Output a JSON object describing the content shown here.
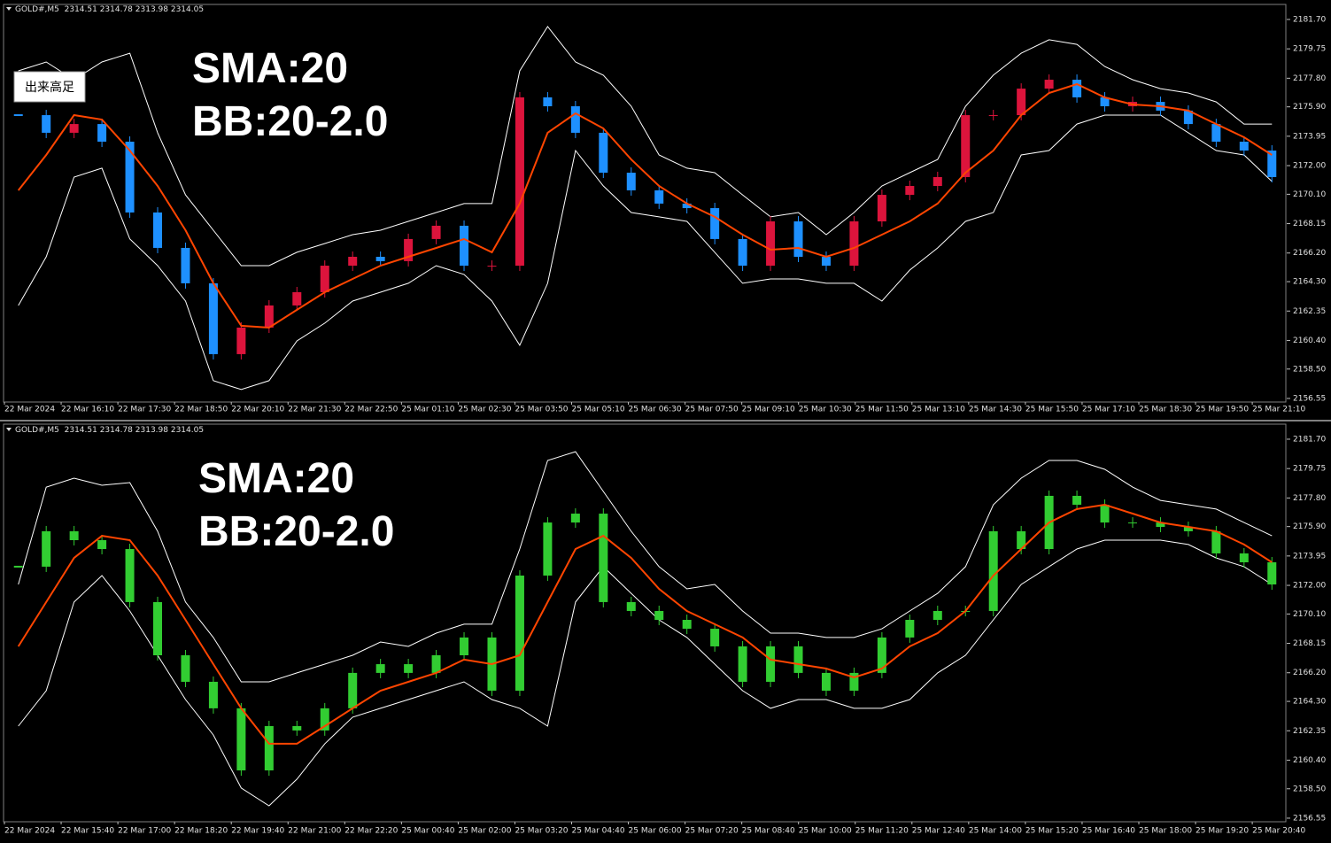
{
  "chart_data": [
    {
      "type": "candlestick",
      "header": "GOLD#,M5  2314.51 2314.78 2313.98 2314.05",
      "annotations": [
        "SMA:20",
        "BB:20-2.0"
      ],
      "button": "出来高足",
      "x_labels": [
        "22 Mar 2024",
        "22 Mar 16:10",
        "22 Mar 17:30",
        "22 Mar 18:50",
        "22 Mar 20:10",
        "22 Mar 21:30",
        "22 Mar 22:50",
        "25 Mar 01:10",
        "25 Mar 02:30",
        "25 Mar 03:50",
        "25 Mar 05:10",
        "25 Mar 06:30",
        "25 Mar 07:50",
        "25 Mar 09:10",
        "25 Mar 10:30",
        "25 Mar 11:50",
        "25 Mar 13:10",
        "25 Mar 14:30",
        "25 Mar 15:50",
        "25 Mar 17:10",
        "25 Mar 18:30",
        "25 Mar 19:50",
        "25 Mar 21:10"
      ],
      "ylim": [
        2156.43,
        2182.58
      ],
      "yticks": [
        {
          "value": 2181.7,
          "label": "2181.70"
        },
        2179.75,
        {
          "value": 2177.8,
          "label": "2177.80"
        },
        {
          "value": 2175.9,
          "label": "2175.90"
        },
        2173.95,
        {
          "value": 2172,
          "label": "2172.00"
        },
        {
          "value": 2170.1,
          "label": "2170.10"
        },
        2168.15,
        {
          "value": 2166.2,
          "label": "2166.20"
        },
        {
          "value": 2164.3,
          "label": "2164.30"
        },
        2162.35,
        {
          "value": 2160.4,
          "label": "2160.40"
        },
        {
          "value": 2158.5,
          "label": "2158.50"
        },
        2156.55
      ],
      "close": {
        "up_color": "#dc143c",
        "down_color": "#1e90ff",
        "values": [
          2175.35,
          2174.18,
          2174.76,
          2173.59,
          2168.89,
          2166.54,
          2164.19,
          2159.49,
          2161.25,
          2162.72,
          2163.6,
          2165.36,
          2165.95,
          2165.66,
          2167.13,
          2168.01,
          2165.36,
          2165.36,
          2176.53,
          2175.94,
          2174.18,
          2171.53,
          2170.36,
          2169.48,
          2169.18,
          2167.13,
          2165.36,
          2168.3,
          2165.95,
          2165.36,
          2168.3,
          2170.06,
          2170.65,
          2171.24,
          2175.35,
          2175.35,
          2177.11,
          2177.7,
          2176.53,
          2175.94,
          2176.23,
          2175.65,
          2174.76,
          2173.59,
          2173.0,
          2171.24
        ]
      },
      "sma": {
        "color": "#ff4500",
        "values": [
          2170.36,
          2172.71,
          2175.35,
          2175.06,
          2173.0,
          2170.65,
          2167.71,
          2164.19,
          2161.37,
          2161.25,
          2162.43,
          2163.6,
          2164.48,
          2165.36,
          2165.95,
          2166.54,
          2167.13,
          2166.25,
          2169.48,
          2174.18,
          2175.47,
          2174.47,
          2172.41,
          2170.65,
          2169.48,
          2168.6,
          2167.42,
          2166.42,
          2166.54,
          2165.95,
          2166.54,
          2167.42,
          2168.3,
          2169.48,
          2171.53,
          2173.0,
          2175.35,
          2176.82,
          2177.41,
          2176.53,
          2176.06,
          2175.94,
          2175.65,
          2174.76,
          2173.88,
          2172.71
        ]
      },
      "bb_upper": {
        "color": "#ffffff",
        "values": [
          2178.29,
          2178.88,
          2177.7,
          2178.88,
          2179.46,
          2174.18,
          2170.06,
          2167.71,
          2165.36,
          2165.36,
          2166.25,
          2166.83,
          2167.42,
          2167.71,
          2168.3,
          2168.89,
          2169.48,
          2169.48,
          2178.29,
          2181.23,
          2178.88,
          2178.0,
          2175.94,
          2172.71,
          2171.83,
          2171.53,
          2170.06,
          2168.6,
          2168.89,
          2167.42,
          2168.89,
          2170.65,
          2171.53,
          2172.41,
          2175.94,
          2178.0,
          2179.46,
          2180.35,
          2180.05,
          2178.58,
          2177.7,
          2177.11,
          2176.82,
          2176.23,
          2174.76,
          2174.76
        ]
      },
      "bb_lower": {
        "color": "#ffffff",
        "values": [
          2162.72,
          2165.95,
          2171.24,
          2171.83,
          2167.13,
          2165.36,
          2163.01,
          2157.73,
          2157.14,
          2157.73,
          2160.37,
          2161.55,
          2163.01,
          2163.6,
          2164.19,
          2165.36,
          2164.78,
          2163.01,
          2160.08,
          2164.19,
          2173.0,
          2170.65,
          2168.89,
          2168.6,
          2168.3,
          2166.25,
          2164.19,
          2164.48,
          2164.48,
          2164.19,
          2164.19,
          2163.01,
          2165.07,
          2166.54,
          2168.3,
          2168.89,
          2172.71,
          2173.0,
          2174.76,
          2175.35,
          2175.35,
          2175.35,
          2174.18,
          2173.0,
          2172.71,
          2170.95
        ]
      }
    },
    {
      "type": "candlestick",
      "header": "GOLD#,M5  2314.51 2314.78 2313.98 2314.05",
      "annotations": [
        "SMA:20",
        "BB:20-2.0"
      ],
      "x_labels": [
        "22 Mar 2024",
        "22 Mar 15:40",
        "22 Mar 17:00",
        "22 Mar 18:20",
        "22 Mar 19:40",
        "22 Mar 21:00",
        "22 Mar 22:20",
        "25 Mar 00:40",
        "25 Mar 02:00",
        "25 Mar 03:20",
        "25 Mar 04:40",
        "25 Mar 06:00",
        "25 Mar 07:20",
        "25 Mar 08:40",
        "25 Mar 10:00",
        "25 Mar 11:20",
        "25 Mar 12:40",
        "25 Mar 14:00",
        "25 Mar 15:20",
        "25 Mar 16:40",
        "25 Mar 18:00",
        "25 Mar 19:20",
        "25 Mar 20:40"
      ],
      "ylim": [
        2156.43,
        2182.58
      ],
      "yticks": [
        {
          "value": 2181.7,
          "label": "2181.70"
        },
        2179.75,
        {
          "value": 2177.8,
          "label": "2177.80"
        },
        {
          "value": 2175.9,
          "label": "2175.90"
        },
        2173.95,
        {
          "value": 2172,
          "label": "2172.00"
        },
        {
          "value": 2170.1,
          "label": "2170.10"
        },
        2168.15,
        {
          "value": 2166.2,
          "label": "2166.20"
        },
        {
          "value": 2164.3,
          "label": "2164.30"
        },
        2162.35,
        {
          "value": 2160.4,
          "label": "2160.40"
        },
        {
          "value": 2158.5,
          "label": "2158.50"
        },
        2156.55
      ],
      "close": {
        "up_color": "#32cd32",
        "down_color": "#32cd32",
        "values": [
          2173.24,
          2175.59,
          2175.0,
          2174.41,
          2170.89,
          2167.36,
          2165.6,
          2163.84,
          2159.72,
          2162.66,
          2162.37,
          2163.84,
          2166.19,
          2166.77,
          2166.19,
          2167.36,
          2168.54,
          2165.01,
          2172.65,
          2176.17,
          2176.76,
          2170.89,
          2170.3,
          2169.71,
          2169.12,
          2167.95,
          2165.6,
          2167.95,
          2166.19,
          2165.01,
          2166.19,
          2168.54,
          2169.71,
          2170.3,
          2170.3,
          2175.59,
          2174.41,
          2177.94,
          2177.35,
          2176.17,
          2176.17,
          2175.88,
          2175.59,
          2174.12,
          2173.53,
          2172.06
        ]
      },
      "sma": {
        "color": "#ff4500",
        "values": [
          2167.95,
          2170.89,
          2173.82,
          2175.29,
          2175.0,
          2172.65,
          2169.71,
          2166.77,
          2163.84,
          2161.49,
          2161.49,
          2162.66,
          2163.84,
          2165.01,
          2165.6,
          2166.19,
          2167.07,
          2166.77,
          2167.36,
          2170.89,
          2174.41,
          2175.29,
          2173.82,
          2171.77,
          2170.3,
          2169.42,
          2168.54,
          2167.07,
          2166.77,
          2166.48,
          2165.89,
          2166.48,
          2167.95,
          2168.83,
          2170.3,
          2172.65,
          2174.41,
          2176.17,
          2177.06,
          2177.35,
          2176.76,
          2176.17,
          2175.88,
          2175.59,
          2174.71,
          2173.53
        ]
      },
      "bb_upper": {
        "color": "#ffffff",
        "values": [
          2172.06,
          2178.52,
          2179.11,
          2178.64,
          2178.82,
          2175.59,
          2170.89,
          2168.54,
          2165.6,
          2165.6,
          2166.19,
          2166.77,
          2167.36,
          2168.24,
          2167.95,
          2168.83,
          2169.42,
          2169.42,
          2174.41,
          2180.29,
          2180.87,
          2178.23,
          2175.59,
          2173.24,
          2171.77,
          2172.06,
          2170.3,
          2168.83,
          2168.83,
          2168.54,
          2168.54,
          2169.12,
          2170.3,
          2171.47,
          2173.24,
          2177.35,
          2179.11,
          2180.29,
          2180.29,
          2179.7,
          2178.52,
          2177.64,
          2177.35,
          2177.06,
          2176.17,
          2175.29
        ]
      },
      "bb_lower": {
        "color": "#ffffff",
        "values": [
          2162.66,
          2165.01,
          2170.89,
          2172.65,
          2170.3,
          2167.36,
          2164.42,
          2162.07,
          2158.55,
          2157.37,
          2159.14,
          2161.49,
          2163.25,
          2163.84,
          2164.42,
          2165.01,
          2165.6,
          2164.42,
          2163.84,
          2162.66,
          2170.89,
          2173.24,
          2171.47,
          2169.71,
          2168.54,
          2166.77,
          2165.01,
          2163.84,
          2164.42,
          2164.42,
          2163.84,
          2163.84,
          2164.42,
          2166.19,
          2167.36,
          2169.71,
          2172.06,
          2173.24,
          2174.41,
          2175.0,
          2175.0,
          2175.0,
          2174.71,
          2173.82,
          2173.24,
          2172.06
        ]
      }
    }
  ]
}
